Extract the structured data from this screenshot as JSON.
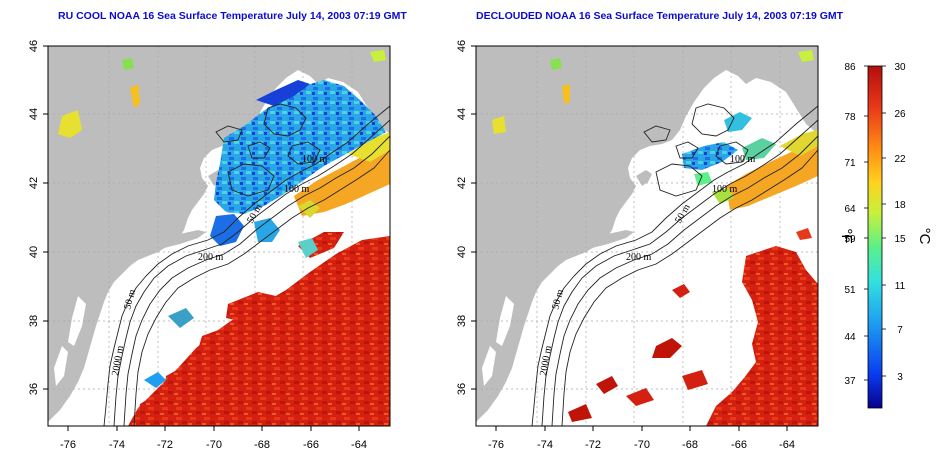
{
  "panels": [
    {
      "title": "RU COOL NOAA 16 Sea Surface Temperature July 14, 2003 07:19 GMT",
      "contour_labels": [
        "200 m",
        "100 m",
        "100 m",
        "50 m",
        "50 m",
        "2000 m"
      ]
    },
    {
      "title": "DECLOUDED NOAA 16 Sea Surface Temperature July 14, 2003 07:19 GMT",
      "contour_labels": [
        "200 m",
        "100 m",
        "100 m",
        "50 m",
        "50 m",
        "2000 m"
      ]
    }
  ],
  "axes": {
    "lat_ticks": [
      "46",
      "44",
      "42",
      "40",
      "38",
      "36"
    ],
    "lon_ticks": [
      "-76",
      "-74",
      "-72",
      "-70",
      "-68",
      "-66",
      "-64"
    ]
  },
  "colorbar": {
    "fahrenheit_ticks": [
      "86",
      "78",
      "71",
      "64",
      "59",
      "51",
      "44",
      "37"
    ],
    "celsius_ticks": [
      "30",
      "26",
      "22",
      "18",
      "15",
      "11",
      "7",
      "3"
    ],
    "left_unit": "°F",
    "right_unit": "°C",
    "colors": [
      "#08008c",
      "#0a3cf0",
      "#1e9ff0",
      "#33e0e0",
      "#5bf08a",
      "#c8f03c",
      "#ffd21e",
      "#ff8c14",
      "#e8381a",
      "#b40e0e"
    ]
  },
  "colors": {
    "land": "#bdbdbd",
    "cloud": "#ffffff",
    "title": "#0b0bd0",
    "grid": "#a8a8a8"
  }
}
